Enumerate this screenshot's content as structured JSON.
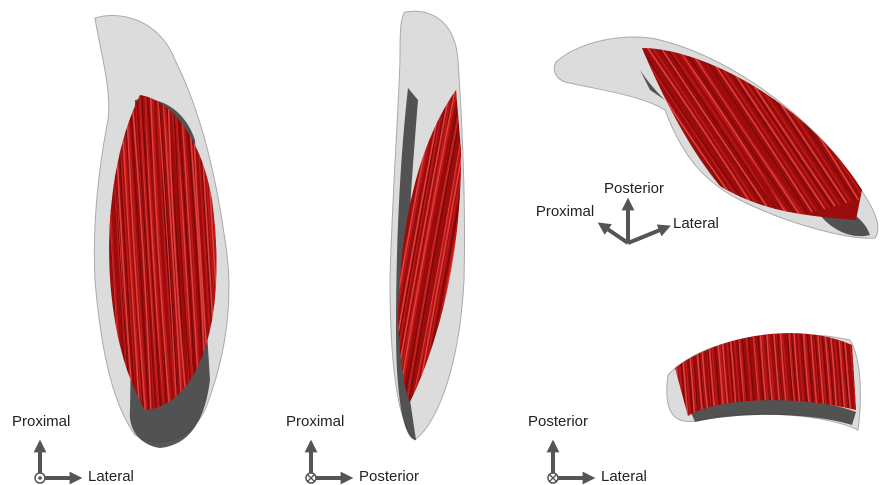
{
  "views": [
    {
      "vertical": "Proximal",
      "horizontal": "Lateral"
    },
    {
      "vertical": "Proximal",
      "horizontal": "Posterior"
    },
    {
      "vertical": "Posterior",
      "horizontal": "Lateral"
    }
  ],
  "oblique_axes": {
    "up": "Posterior",
    "left": "Proximal",
    "right": "Lateral"
  }
}
